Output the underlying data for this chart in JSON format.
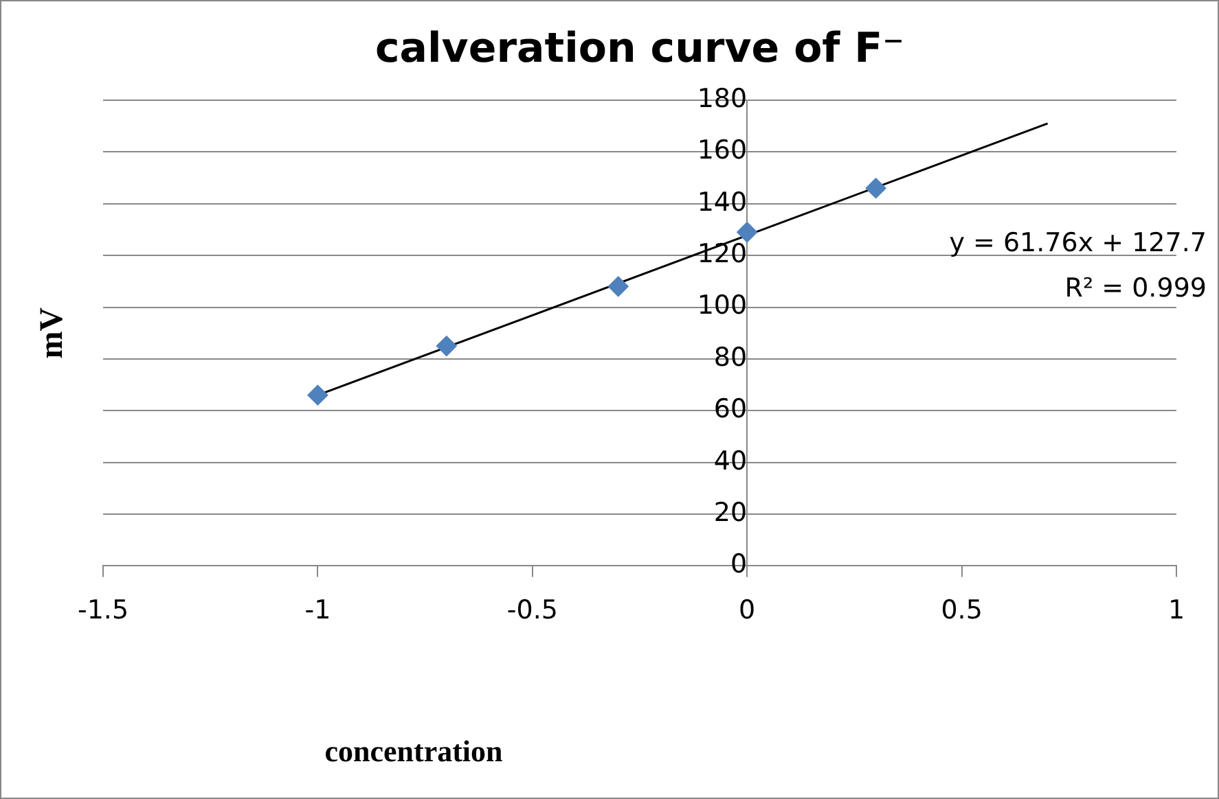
{
  "chart_data": {
    "type": "scatter",
    "title": "calveration curve of F⁻",
    "xlabel": "concentration",
    "ylabel": "mV",
    "x": [
      -1,
      -0.7,
      -0.3,
      0,
      0.3
    ],
    "series": [
      {
        "type": "scatter",
        "color": "#4f81bd",
        "values": [
          66,
          85,
          108,
          129,
          146
        ],
        "marker": "diamond"
      },
      {
        "type": "line",
        "color": "#000000",
        "x": [
          -1,
          0.7
        ],
        "values": [
          66,
          171
        ],
        "marker": "none",
        "line_style": "solid"
      }
    ],
    "annotations": [
      "y = 61.76x + 127.7",
      "R² = 0.999"
    ],
    "xlim": [
      -1.5,
      1
    ],
    "xticks": [
      -1.5,
      -1,
      -0.5,
      0,
      0.5,
      1
    ],
    "ylim": [
      0,
      180
    ],
    "yticks": [
      0,
      20,
      40,
      60,
      80,
      100,
      120,
      140,
      160,
      180
    ],
    "grid": "y",
    "legend": false
  }
}
